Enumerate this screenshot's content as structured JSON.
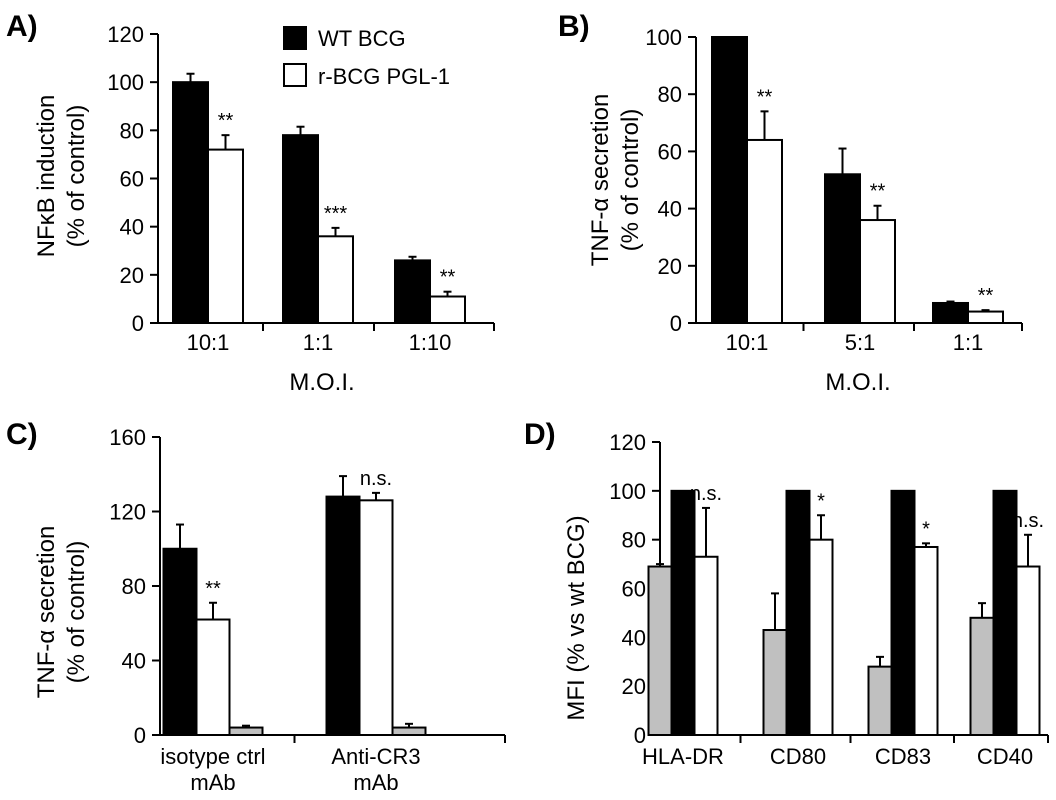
{
  "legend": [
    {
      "label": "WT BCG",
      "color": "#000000"
    },
    {
      "label": "r-BCG PGL-1",
      "color": "#ffffff"
    }
  ],
  "chart_data": [
    {
      "panel": "A)",
      "type": "bar",
      "ylabel_lines": [
        "NFκB induction",
        "(% of control)"
      ],
      "xlabel": "M.O.I.",
      "ylim": [
        0,
        120
      ],
      "yticks": [
        0,
        20,
        40,
        60,
        80,
        100,
        120
      ],
      "categories": [
        [
          "10:1"
        ],
        [
          "1:1"
        ],
        [
          "1:10"
        ]
      ],
      "series": [
        {
          "name": "WT BCG",
          "color": "#000000",
          "values": [
            100,
            78,
            26
          ],
          "errors": [
            3.5,
            3.5,
            1.5
          ]
        },
        {
          "name": "r-BCG PGL-1",
          "color": "#ffffff",
          "values": [
            72,
            36,
            11
          ],
          "errors": [
            6,
            3.5,
            2
          ]
        }
      ],
      "annotations": [
        {
          "category": 0,
          "series": 1,
          "text": "**"
        },
        {
          "category": 1,
          "series": 1,
          "text": "***"
        },
        {
          "category": 2,
          "series": 1,
          "text": "**"
        }
      ]
    },
    {
      "panel": "B)",
      "type": "bar",
      "ylabel_lines": [
        "TNF-α secretion",
        "(% of control)"
      ],
      "xlabel": "M.O.I.",
      "ylim": [
        0,
        100
      ],
      "yticks": [
        0,
        20,
        40,
        60,
        80,
        100
      ],
      "categories": [
        [
          "10:1"
        ],
        [
          "5:1"
        ],
        [
          "1:1"
        ]
      ],
      "series": [
        {
          "name": "WT BCG",
          "color": "#000000",
          "values": [
            100,
            52,
            7
          ],
          "errors": [
            0,
            9,
            0.5
          ]
        },
        {
          "name": "r-BCG PGL-1",
          "color": "#ffffff",
          "values": [
            64,
            36,
            4
          ],
          "errors": [
            10,
            5,
            0.5
          ]
        }
      ],
      "annotations": [
        {
          "category": 0,
          "series": 1,
          "text": "**"
        },
        {
          "category": 1,
          "series": 1,
          "text": "**"
        },
        {
          "category": 2,
          "series": 1,
          "text": "**"
        }
      ]
    },
    {
      "panel": "C)",
      "type": "bar",
      "ylabel_lines": [
        "TNF-α secretion",
        "(% of control)"
      ],
      "xlabel": "",
      "ylim": [
        0,
        160
      ],
      "yticks": [
        0,
        40,
        80,
        120,
        160
      ],
      "categories": [
        [
          "isotype ctrl",
          "mAb"
        ],
        [
          "Anti-CR3",
          "mAb"
        ]
      ],
      "series": [
        {
          "color": "#000000",
          "values": [
            100,
            128
          ],
          "errors": [
            13,
            11
          ]
        },
        {
          "color": "#ffffff",
          "values": [
            62,
            126
          ],
          "errors": [
            9,
            4
          ]
        },
        {
          "color": "#c0c0c0",
          "values": [
            4,
            4
          ],
          "errors": [
            1,
            2
          ]
        }
      ],
      "annotations": [
        {
          "category": 0,
          "series": 1,
          "text": "**"
        },
        {
          "category": 1,
          "series": 1,
          "text": "n.s."
        }
      ]
    },
    {
      "panel": "D)",
      "type": "bar",
      "ylabel_lines": [
        "MFI (% vs wt BCG)"
      ],
      "xlabel": "",
      "ylim": [
        0,
        120
      ],
      "yticks": [
        0,
        20,
        40,
        60,
        80,
        100,
        120
      ],
      "categories": [
        [
          "HLA-DR"
        ],
        [
          "CD80"
        ],
        [
          "CD83"
        ],
        [
          "CD40"
        ]
      ],
      "series": [
        {
          "color": "#c0c0c0",
          "values": [
            69,
            43,
            28,
            48
          ],
          "errors": [
            1,
            15,
            4,
            6
          ]
        },
        {
          "color": "#000000",
          "values": [
            100,
            100,
            100,
            100
          ],
          "errors": [
            0,
            0,
            0,
            0
          ]
        },
        {
          "color": "#ffffff",
          "values": [
            73,
            80,
            77,
            69
          ],
          "errors": [
            20,
            10,
            1.5,
            13
          ]
        }
      ],
      "annotations": [
        {
          "category": 0,
          "series": 2,
          "text": "n.s."
        },
        {
          "category": 1,
          "series": 2,
          "text": "*"
        },
        {
          "category": 2,
          "series": 2,
          "text": "*"
        },
        {
          "category": 3,
          "series": 2,
          "text": "n.s."
        }
      ]
    }
  ]
}
